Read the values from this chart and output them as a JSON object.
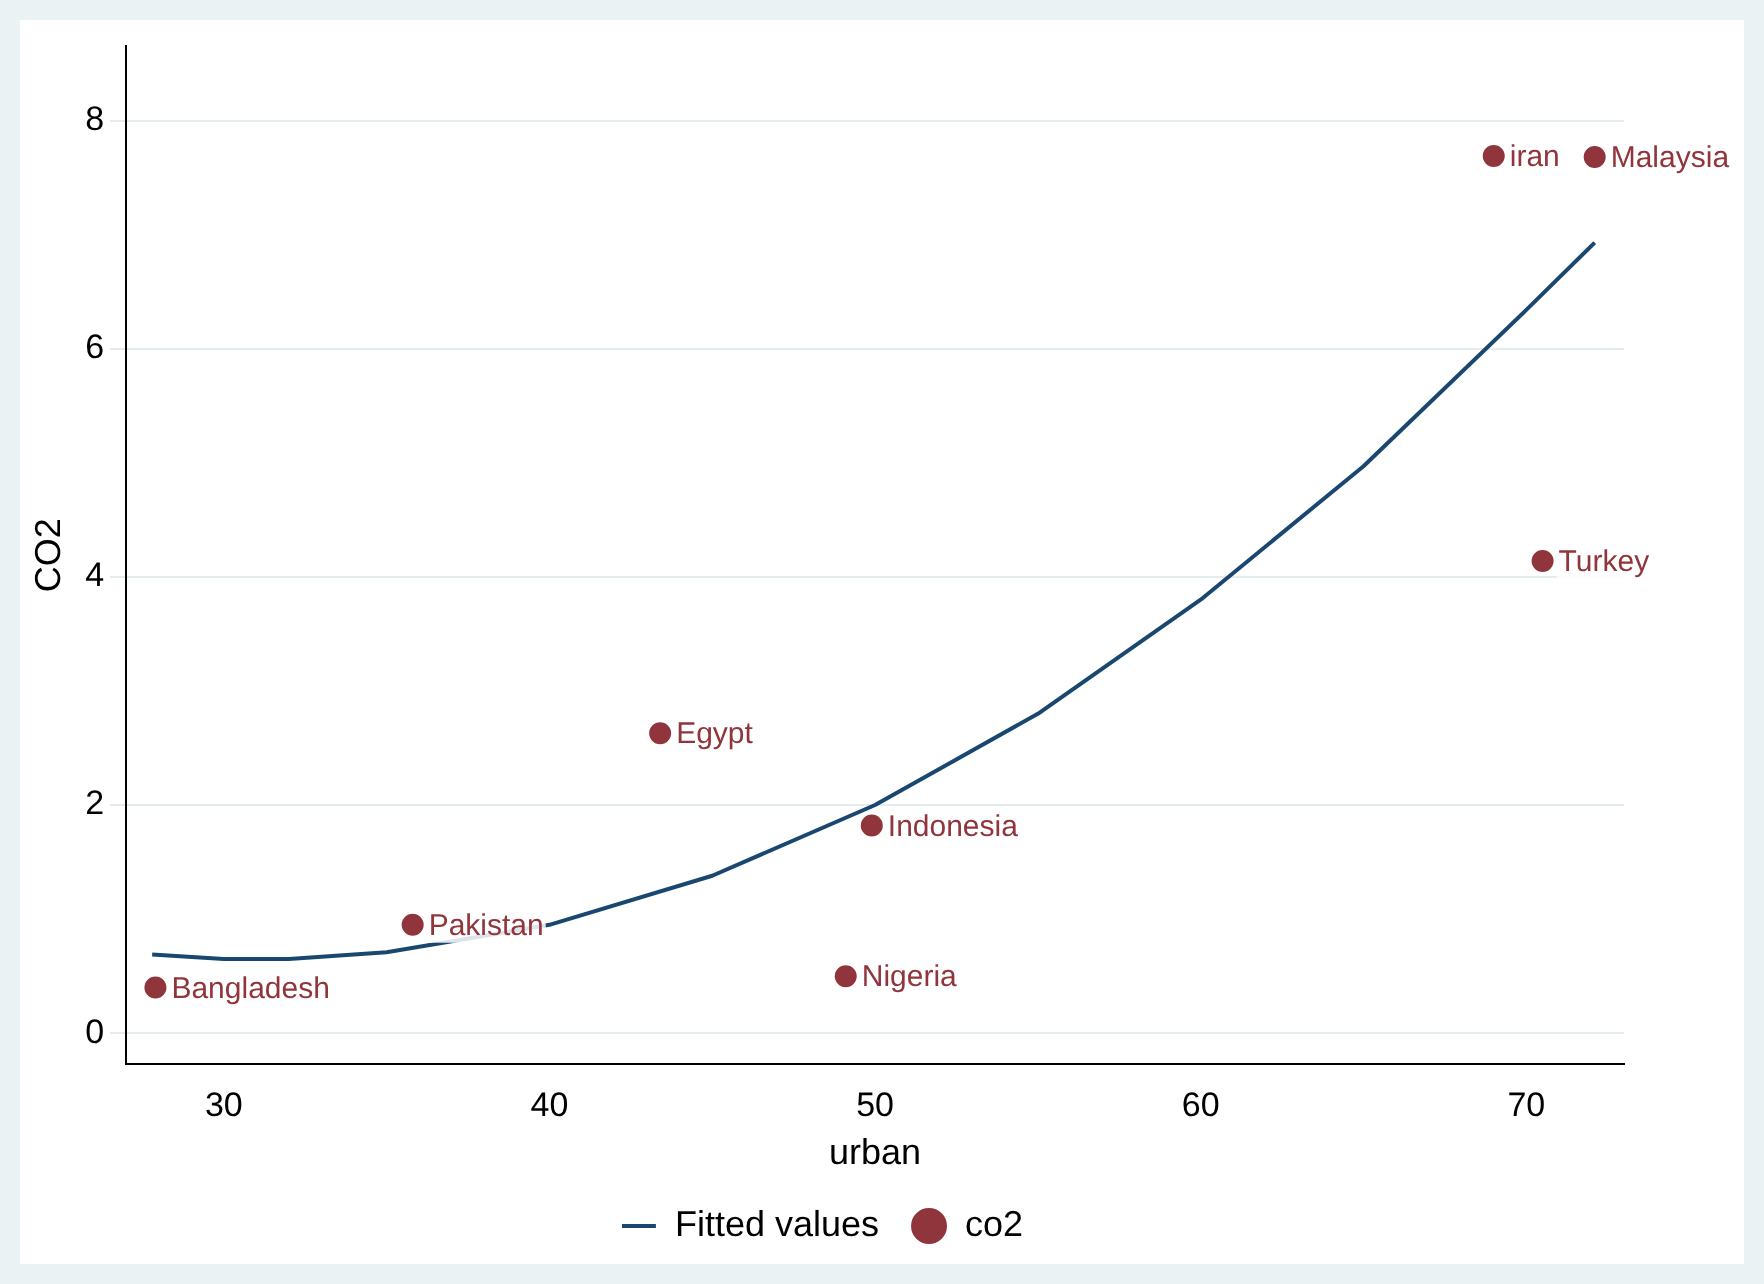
{
  "chart_data": {
    "type": "scatter",
    "xlabel": "urban",
    "ylabel": "CO2",
    "xlim": [
      27,
      73
    ],
    "xticks": [
      30,
      40,
      50,
      60,
      70
    ],
    "ylim": [
      -0.27,
      8.65
    ],
    "yticks": [
      0,
      2,
      4,
      6,
      8
    ],
    "grid": "y",
    "legend": "bottom",
    "marker": "circle",
    "series": [
      {
        "name": "Fitted values",
        "type": "line",
        "marker": "none",
        "color": "#1a476f",
        "x": [
          27.8,
          30,
          32,
          35,
          40,
          45,
          50,
          55,
          60,
          65,
          70,
          72.1
        ],
        "values": [
          0.69,
          0.65,
          0.65,
          0.71,
          0.95,
          1.38,
          2.0,
          2.8,
          3.8,
          4.97,
          6.34,
          6.93
        ]
      },
      {
        "name": "co2",
        "type": "scatter",
        "color": "#90353b",
        "x": [
          27.9,
          35.8,
          43.4,
          49.1,
          49.9,
          69.0,
          70.5,
          72.1
        ],
        "values": [
          0.4,
          0.95,
          2.63,
          0.5,
          1.82,
          7.69,
          4.14,
          7.68
        ]
      }
    ],
    "annotations": [
      {
        "text": "Bangladesh",
        "x": 27.9,
        "y": 0.4
      },
      {
        "text": "Pakistan",
        "x": 35.8,
        "y": 0.95
      },
      {
        "text": "Egypt",
        "x": 43.4,
        "y": 2.63
      },
      {
        "text": "Nigeria",
        "x": 49.1,
        "y": 0.5
      },
      {
        "text": "Indonesia",
        "x": 49.9,
        "y": 1.82
      },
      {
        "text": "iran",
        "x": 69.0,
        "y": 7.69
      },
      {
        "text": "Turkey",
        "x": 70.5,
        "y": 4.14
      },
      {
        "text": "Malaysia",
        "x": 72.1,
        "y": 7.68
      }
    ]
  }
}
